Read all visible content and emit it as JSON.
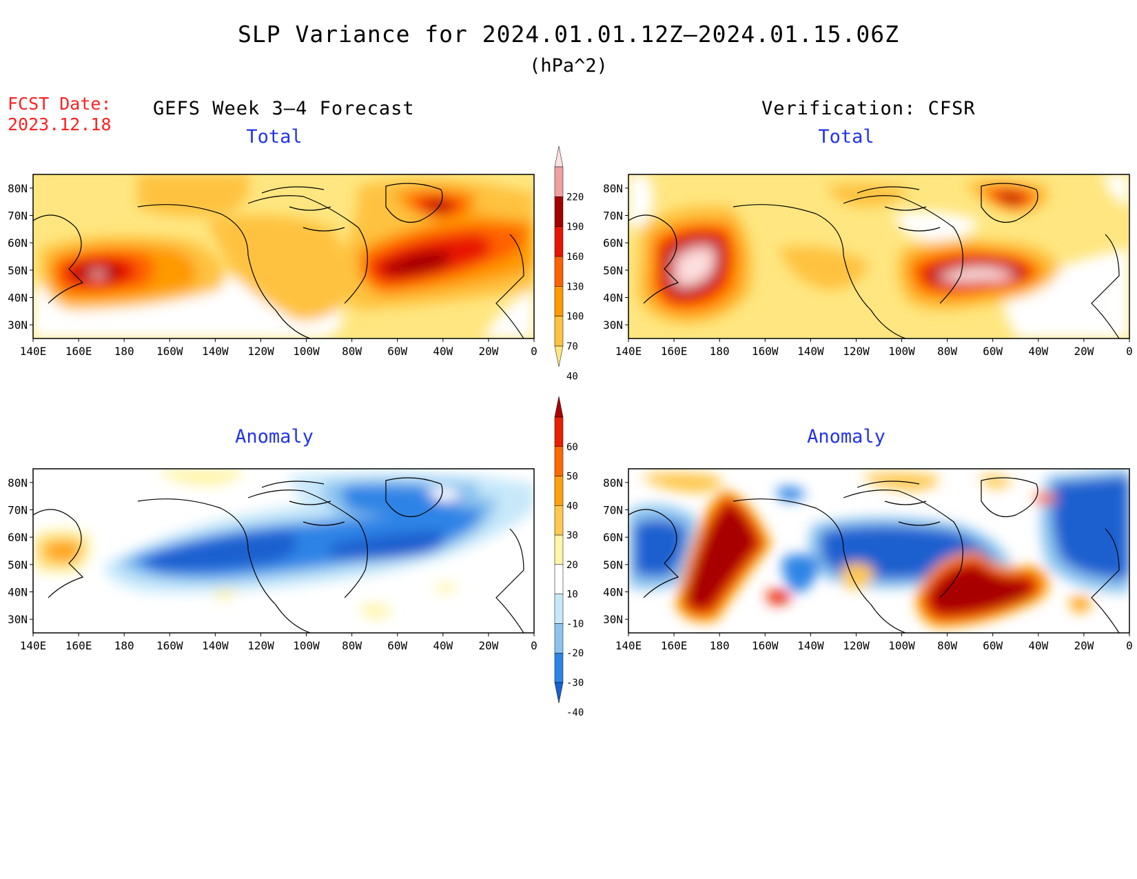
{
  "title": "SLP Variance for 2024.01.01.12Z–2024.01.15.06Z",
  "units": "(hPa^2)",
  "forecast_date": {
    "label": "FCST Date:",
    "value": "2023.12.18"
  },
  "columns": {
    "left": "GEFS Week 3–4 Forecast",
    "right": "Verification: CFSR"
  },
  "rows": {
    "top": "Total",
    "bottom": "Anomaly"
  },
  "lat_ticks": [
    "30N",
    "40N",
    "50N",
    "60N",
    "70N",
    "80N"
  ],
  "lon_ticks": [
    "140E",
    "160E",
    "180",
    "160W",
    "140W",
    "120W",
    "100W",
    "80W",
    "60W",
    "40W",
    "20W",
    "0"
  ],
  "total_scale": {
    "levels": [
      "40",
      "70",
      "100",
      "130",
      "160",
      "190",
      "220"
    ],
    "colors": [
      "#ffe680",
      "#ffc240",
      "#ff9a00",
      "#ff6000",
      "#e81400",
      "#a50000",
      "#f0a0a0",
      "#fde0e0"
    ]
  },
  "anomaly_scale": {
    "levels": [
      "-40",
      "-30",
      "-20",
      "-10",
      "10",
      "20",
      "30",
      "40",
      "50",
      "60"
    ],
    "colors": [
      "#1a60d0",
      "#2d84e6",
      "#8cc4ef",
      "#c8e8fa",
      "#ffffff",
      "#fff4a8",
      "#ffc84f",
      "#ffa010",
      "#ff6a00",
      "#e82000",
      "#a80000"
    ]
  }
}
